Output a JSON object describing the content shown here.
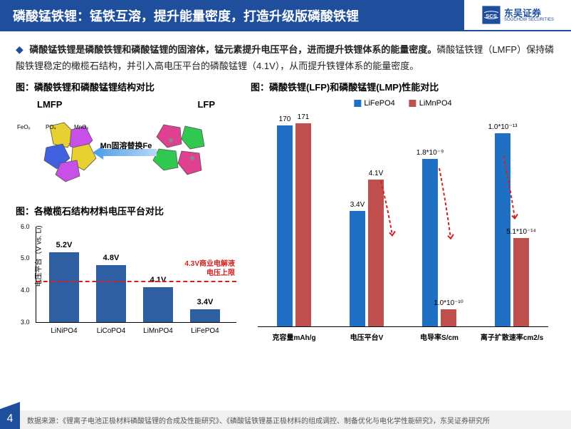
{
  "header": {
    "title": "磷酸锰铁锂：锰铁互溶，提升能量密度，打造升级版磷酸铁锂",
    "logo_cn": "东吴证券",
    "logo_en": "SOOCHOW SECURITIES",
    "logo_badge": "SCS"
  },
  "intro": {
    "bold": "磷酸锰铁锂是磷酸铁锂和磷酸锰锂的固溶体，锰元素提升电压平台，进而提升铁锂体系的能量密度。",
    "rest": "磷酸锰铁锂（LMFP）保持磷酸铁锂稳定的橄榄石结构，并引入高电压平台的磷酸锰锂（4.1V），从而提升铁锂体系的能量密度。"
  },
  "fig1": {
    "title": "图：磷酸铁锂和磷酸锰锂结构对比",
    "lmfp": "LMFP",
    "lfp": "LFP",
    "arrow_text": "Mn固溶替换Fe",
    "fe": "FeO₆",
    "po": "PO₄",
    "mn": "MnO₆"
  },
  "fig2": {
    "title": "图：各橄榄石结构材料电压平台对比",
    "ylabel": "电压平台（V vs. Li)",
    "ylim": [
      3.0,
      6.0
    ],
    "yticks": [
      "3.0",
      "4.0",
      "5.0",
      "6.0"
    ],
    "bars": [
      {
        "x": "LiNiPO4",
        "v": 5.2,
        "label": "5.2V"
      },
      {
        "x": "LiCoPO4",
        "v": 4.8,
        "label": "4.8V"
      },
      {
        "x": "LiMnPO4",
        "v": 4.1,
        "label": "4.1V"
      },
      {
        "x": "LiFePO4",
        "v": 3.4,
        "label": "3.4V"
      }
    ],
    "limit_v": 4.3,
    "limit_text1": "4.3V商业电解液",
    "limit_text2": "电压上限",
    "bar_color": "#2e5fa3"
  },
  "fig3": {
    "title": "图：磷酸铁锂(LFP)和磷酸锰锂(LMP)性能对比",
    "legend": [
      {
        "name": "LiFePO4",
        "color": "#1f6fc4"
      },
      {
        "name": "LiMnPO4",
        "color": "#c0504d"
      }
    ],
    "groups": [
      {
        "x": "克容量mAh/g",
        "blue_h": 0.96,
        "blue_label": "170",
        "red_h": 0.97,
        "red_label": "171"
      },
      {
        "x": "电压平台V",
        "blue_h": 0.55,
        "blue_label": "3.4V",
        "red_h": 0.7,
        "red_label": "4.1V"
      },
      {
        "x": "电导率S/cm",
        "blue_h": 0.8,
        "blue_label": "1.8*10⁻⁹",
        "red_h": 0.08,
        "red_label": "1.0*10⁻¹⁰"
      },
      {
        "x": "离子扩散速率cm2/s",
        "blue_h": 0.92,
        "blue_label": "1.0*10⁻¹³",
        "red_h": 0.42,
        "red_label": "5.1*10⁻¹⁴"
      }
    ]
  },
  "footer": {
    "page": "4",
    "source": "数据来源：《锂离子电池正极材料磷酸锰锂的合成及性能研究》、《磷酸锰铁锂基正极材料的组成调控、制备优化与电化学性能研究》，东吴证券研究所"
  }
}
